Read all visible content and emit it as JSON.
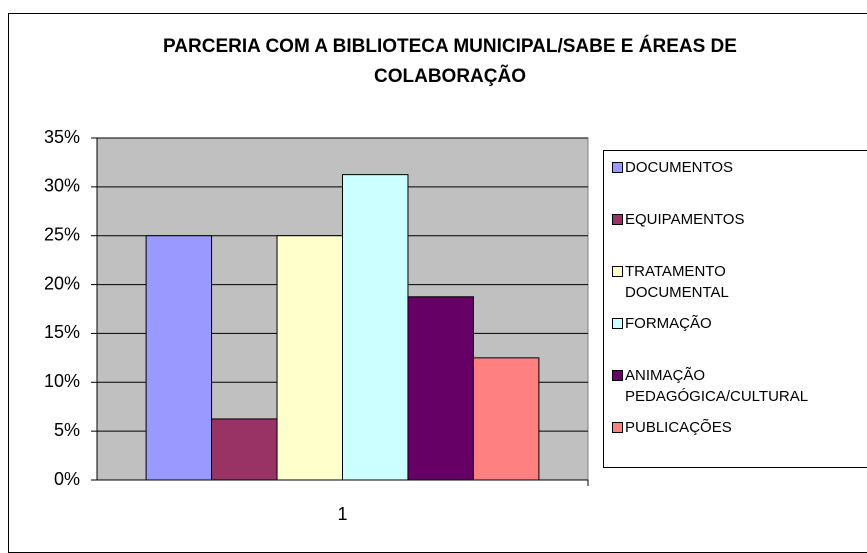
{
  "chart_data": {
    "type": "bar",
    "title": "PARCERIA COM A BIBLIOTECA MUNICIPAL/SABE E ÁREAS DE COLABORAÇÃO",
    "categories": [
      "1"
    ],
    "series": [
      {
        "name": "DOCUMENTOS",
        "color": "#9999ff",
        "values": [
          25
        ]
      },
      {
        "name": "EQUIPAMENTOS",
        "color": "#993366",
        "values": [
          6.25
        ]
      },
      {
        "name": "TRATAMENTO DOCUMENTAL",
        "color": "#ffffcc",
        "values": [
          25
        ]
      },
      {
        "name": "FORMAÇÃO",
        "color": "#ccffff",
        "values": [
          31.25
        ]
      },
      {
        "name": "ANIMAÇÃO PEDAGÓGICA/CULTURAL",
        "color": "#660066",
        "values": [
          18.75
        ]
      },
      {
        "name": "PUBLICAÇÕES",
        "color": "#ff8080",
        "values": [
          12.5
        ]
      }
    ],
    "ylim": [
      0,
      35
    ],
    "yticks": [
      {
        "value": 0,
        "label": "0%"
      },
      {
        "value": 5,
        "label": "5%"
      },
      {
        "value": 10,
        "label": "10%"
      },
      {
        "value": 15,
        "label": "15%"
      },
      {
        "value": 20,
        "label": "20%"
      },
      {
        "value": 25,
        "label": "25%"
      },
      {
        "value": 30,
        "label": "30%"
      },
      {
        "value": 35,
        "label": "35%"
      }
    ],
    "grid": true,
    "legend": "right"
  }
}
